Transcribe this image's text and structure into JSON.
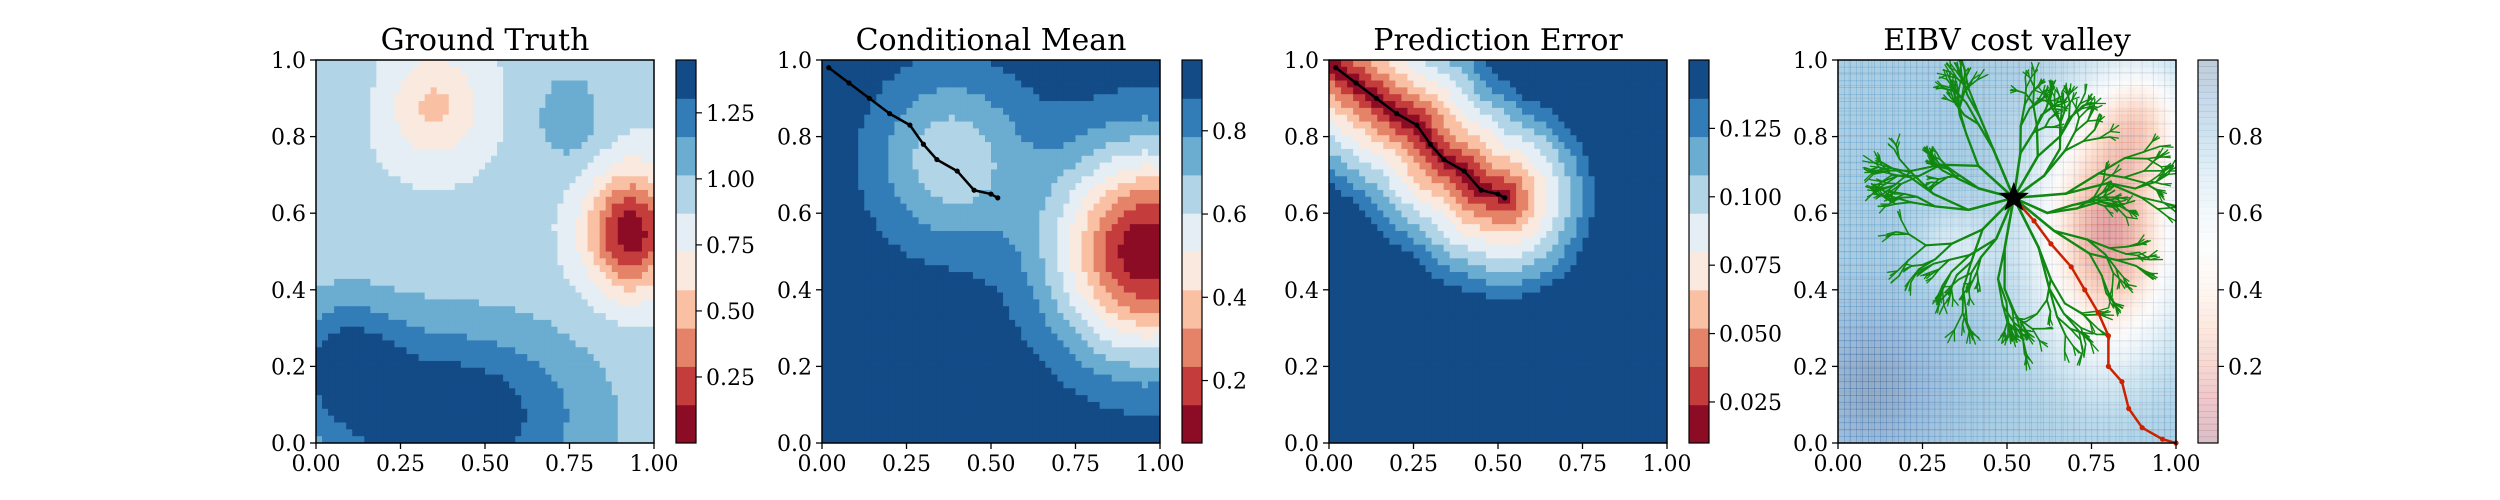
{
  "figure_title": "",
  "chart_data": [
    {
      "type": "heatmap",
      "title": "Ground Truth",
      "xlabel": "",
      "ylabel": "",
      "xlim": [
        0.0,
        1.0
      ],
      "ylim": [
        0.0,
        1.0
      ],
      "xticks": [
        "0.00",
        "0.25",
        "0.50",
        "0.75",
        "1.00"
      ],
      "yticks": [
        "0.0",
        "0.2",
        "0.4",
        "0.6",
        "0.8",
        "1.0"
      ],
      "colormap": "RdBu",
      "colorbar": {
        "vmin": 0.0,
        "vmax": 1.45,
        "levels": 10,
        "ticks": [
          "0.25",
          "0.50",
          "0.75",
          "1.00",
          "1.25"
        ],
        "tick_values": [
          0.25,
          0.5,
          0.75,
          1.0,
          1.25
        ]
      },
      "field": {
        "base": 0.9,
        "bumps": [
          {
            "x": 0.93,
            "y": 0.55,
            "amp": -0.85,
            "sx": 0.09,
            "sy": 0.11
          },
          {
            "x": 0.4,
            "y": 0.07,
            "amp": 0.55,
            "sx": 0.28,
            "sy": 0.17
          },
          {
            "x": 0.08,
            "y": 0.22,
            "amp": 0.35,
            "sx": 0.12,
            "sy": 0.12
          },
          {
            "x": 0.35,
            "y": 0.88,
            "amp": -0.35,
            "sx": 0.1,
            "sy": 0.1
          },
          {
            "x": 0.05,
            "y": 0.9,
            "amp": 0.1,
            "sx": 0.08,
            "sy": 0.08
          },
          {
            "x": 0.75,
            "y": 0.85,
            "amp": 0.2,
            "sx": 0.08,
            "sy": 0.1
          }
        ]
      }
    },
    {
      "type": "heatmap",
      "title": "Conditional Mean",
      "xlabel": "",
      "ylabel": "",
      "xlim": [
        0.0,
        1.0
      ],
      "ylim": [
        0.0,
        1.0
      ],
      "xticks": [
        "0.00",
        "0.25",
        "0.50",
        "0.75",
        "1.00"
      ],
      "yticks": [
        "0.0",
        "0.2",
        "0.4",
        "0.6",
        "0.8",
        "1.0"
      ],
      "colormap": "RdBu",
      "colorbar": {
        "vmin": 0.05,
        "vmax": 0.97,
        "levels": 10,
        "ticks": [
          "0.2",
          "0.4",
          "0.6",
          "0.8"
        ],
        "tick_values": [
          0.2,
          0.4,
          0.6,
          0.8
        ]
      },
      "field": {
        "base": 0.95,
        "bumps": [
          {
            "x": 0.38,
            "y": 0.74,
            "amp": -0.32,
            "sx": 0.16,
            "sy": 0.16
          },
          {
            "x": 0.96,
            "y": 0.5,
            "amp": -0.88,
            "sx": 0.19,
            "sy": 0.19
          }
        ]
      },
      "path": {
        "color": "#000000",
        "points": [
          [
            0.02,
            0.98
          ],
          [
            0.08,
            0.94
          ],
          [
            0.14,
            0.9
          ],
          [
            0.2,
            0.86
          ],
          [
            0.26,
            0.83
          ],
          [
            0.3,
            0.78
          ],
          [
            0.34,
            0.74
          ],
          [
            0.4,
            0.71
          ],
          [
            0.45,
            0.66
          ],
          [
            0.5,
            0.65
          ],
          [
            0.52,
            0.64
          ]
        ]
      }
    },
    {
      "type": "heatmap",
      "title": "Prediction Error",
      "xlabel": "",
      "ylabel": "",
      "xlim": [
        0.0,
        1.0
      ],
      "ylim": [
        0.0,
        1.0
      ],
      "xticks": [
        "0.00",
        "0.25",
        "0.50",
        "0.75",
        "1.00"
      ],
      "yticks": [
        "0.0",
        "0.2",
        "0.4",
        "0.6",
        "0.8",
        "1.0"
      ],
      "colormap": "RdBu",
      "colorbar": {
        "vmin": 0.01,
        "vmax": 0.15,
        "levels": 10,
        "ticks": [
          "0.025",
          "0.050",
          "0.075",
          "0.100",
          "0.125"
        ],
        "tick_values": [
          0.025,
          0.05,
          0.075,
          0.1,
          0.125
        ]
      },
      "field": {
        "type": "distance_to_path",
        "near": 0.01,
        "far": 0.15,
        "radius": 0.3
      },
      "path": {
        "color": "#000000",
        "points": [
          [
            0.02,
            0.98
          ],
          [
            0.08,
            0.94
          ],
          [
            0.14,
            0.9
          ],
          [
            0.2,
            0.86
          ],
          [
            0.26,
            0.83
          ],
          [
            0.3,
            0.78
          ],
          [
            0.34,
            0.74
          ],
          [
            0.4,
            0.71
          ],
          [
            0.45,
            0.66
          ],
          [
            0.5,
            0.65
          ],
          [
            0.52,
            0.64
          ]
        ]
      }
    },
    {
      "type": "heatmap",
      "title": "EIBV cost valley",
      "xlabel": "",
      "ylabel": "",
      "xlim": [
        0.0,
        1.0
      ],
      "ylim": [
        0.0,
        1.0
      ],
      "xticks": [
        "0.00",
        "0.25",
        "0.50",
        "0.75",
        "1.00"
      ],
      "yticks": [
        "0.0",
        "0.2",
        "0.4",
        "0.6",
        "0.8",
        "1.0"
      ],
      "colormap": "RdBu",
      "colormap_alpha": 0.45,
      "grid": true,
      "colorbar": {
        "vmin": 0.0,
        "vmax": 1.0,
        "levels": 0,
        "alpha": 0.25,
        "ticks": [
          "0.2",
          "0.4",
          "0.6",
          "0.8"
        ],
        "tick_values": [
          0.2,
          0.4,
          0.6,
          0.8
        ]
      },
      "field": {
        "base": 0.8,
        "bumps": [
          {
            "x": 0.8,
            "y": 0.55,
            "amp": -0.65,
            "sx": 0.14,
            "sy": 0.22
          },
          {
            "x": 0.9,
            "y": 0.85,
            "amp": -0.3,
            "sx": 0.1,
            "sy": 0.1
          },
          {
            "x": 0.1,
            "y": 0.15,
            "amp": 0.15,
            "sx": 0.15,
            "sy": 0.15
          },
          {
            "x": 0.35,
            "y": 0.5,
            "amp": -0.15,
            "sx": 0.08,
            "sy": 0.08
          }
        ]
      },
      "tree": {
        "color": "#118811",
        "root": [
          0.52,
          0.64
        ],
        "seed": 7,
        "branches": 14,
        "depth": 6
      },
      "path": {
        "color": "#cc2200",
        "points": [
          [
            0.52,
            0.64
          ],
          [
            0.58,
            0.58
          ],
          [
            0.63,
            0.52
          ],
          [
            0.69,
            0.46
          ],
          [
            0.73,
            0.4
          ],
          [
            0.77,
            0.34
          ],
          [
            0.8,
            0.28
          ],
          [
            0.8,
            0.2
          ],
          [
            0.84,
            0.16
          ],
          [
            0.86,
            0.09
          ],
          [
            0.9,
            0.04
          ],
          [
            0.96,
            0.01
          ],
          [
            1.0,
            0.0
          ]
        ]
      },
      "marker": {
        "shape": "star",
        "x": 0.52,
        "y": 0.64,
        "color": "#000000"
      }
    }
  ]
}
